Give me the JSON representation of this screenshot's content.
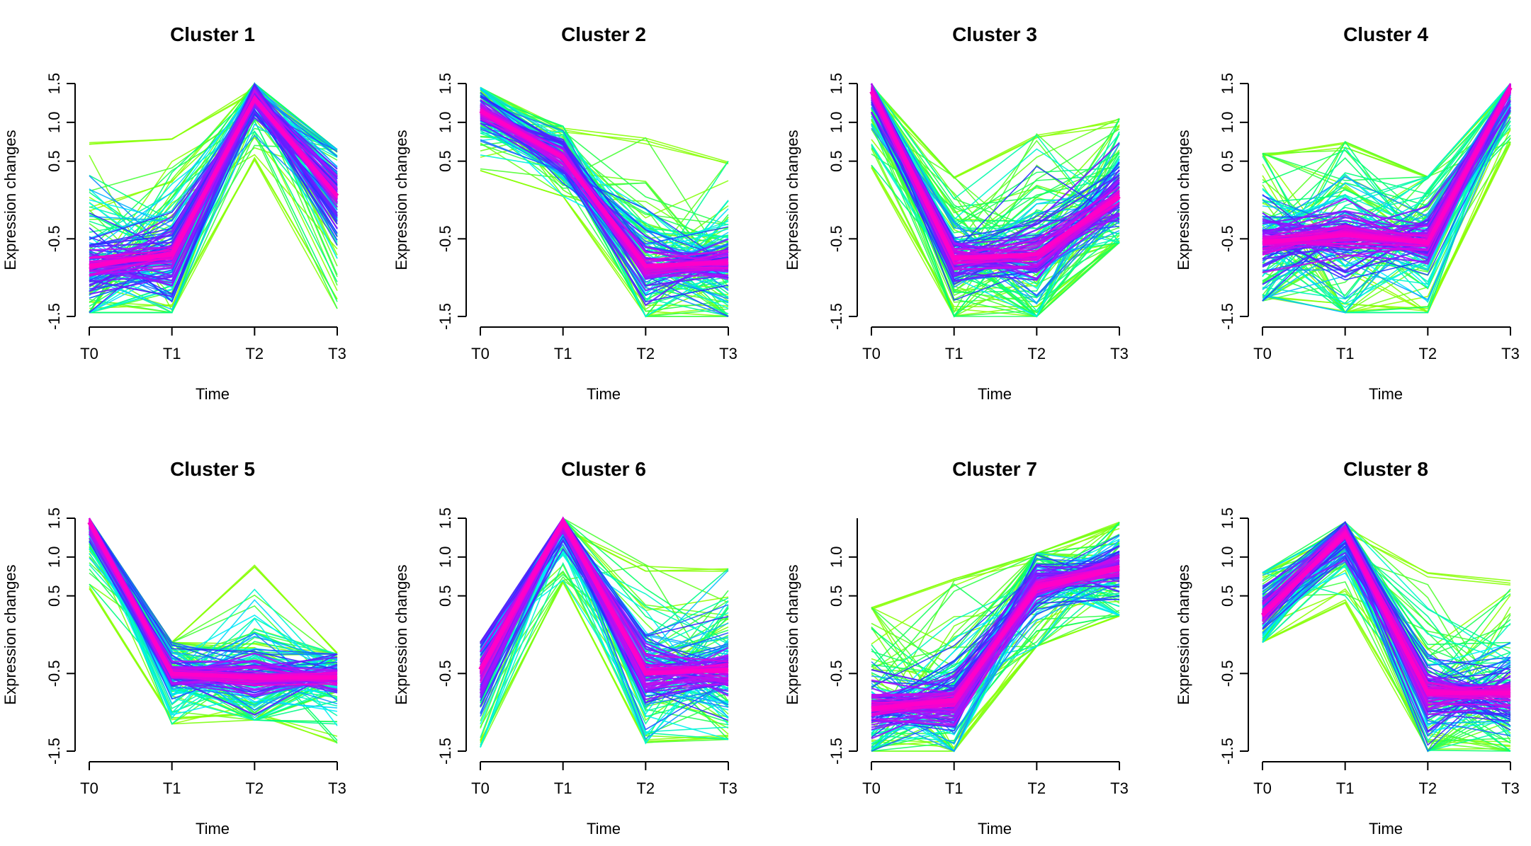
{
  "figure": {
    "xlabel": "Time",
    "ylabel": "Expression changes",
    "x_categories": [
      "T0",
      "T1",
      "T2",
      "T3"
    ]
  },
  "chart_data": [
    {
      "type": "line",
      "title": "Cluster 1",
      "xlabel": "Time",
      "ylabel": "Expression changes",
      "categories": [
        "T0",
        "T1",
        "T2",
        "T3"
      ],
      "yticks": [
        "-1.5",
        "-0.5",
        "0.5",
        "1.0",
        "1.5"
      ],
      "ylim": [
        -1.5,
        1.5
      ],
      "centroid": [
        -0.85,
        -0.7,
        1.3,
        0.05
      ],
      "spread": [
        0.6,
        0.6,
        0.25,
        0.55
      ],
      "y_min": [
        -1.45,
        -1.45,
        0.55,
        -1.4
      ],
      "y_max": [
        0.75,
        0.8,
        1.5,
        0.65
      ],
      "grid": false,
      "legend": "none"
    },
    {
      "type": "line",
      "title": "Cluster 2",
      "xlabel": "Time",
      "ylabel": "Expression changes",
      "categories": [
        "T0",
        "T1",
        "T2",
        "T3"
      ],
      "yticks": [
        "-1.5",
        "-0.5",
        "0.5",
        "1.0",
        "1.5"
      ],
      "ylim": [
        -1.5,
        1.5
      ],
      "centroid": [
        1.15,
        0.55,
        -0.85,
        -0.8
      ],
      "spread": [
        0.25,
        0.25,
        0.45,
        0.45
      ],
      "y_min": [
        0.4,
        0.05,
        -1.5,
        -1.5
      ],
      "y_max": [
        1.45,
        0.95,
        0.8,
        0.5
      ],
      "grid": false,
      "legend": "none"
    },
    {
      "type": "line",
      "title": "Cluster 3",
      "xlabel": "Time",
      "ylabel": "Expression changes",
      "categories": [
        "T0",
        "T1",
        "T2",
        "T3"
      ],
      "yticks": [
        "-1.5",
        "-0.5",
        "0.5",
        "1.0",
        "1.5"
      ],
      "ylim": [
        -1.5,
        1.5
      ],
      "centroid": [
        1.4,
        -0.75,
        -0.7,
        0.05
      ],
      "spread": [
        0.35,
        0.5,
        0.7,
        0.55
      ],
      "y_min": [
        0.45,
        -1.5,
        -1.5,
        -0.55
      ],
      "y_max": [
        1.5,
        0.3,
        0.85,
        1.05
      ],
      "grid": false,
      "legend": "none"
    },
    {
      "type": "line",
      "title": "Cluster 4",
      "xlabel": "Time",
      "ylabel": "Expression changes",
      "categories": [
        "T0",
        "T1",
        "T2",
        "T3"
      ],
      "yticks": [
        "-1.5",
        "-0.5",
        "0.5",
        "1.0",
        "1.5"
      ],
      "ylim": [
        -1.5,
        1.5
      ],
      "centroid": [
        -0.55,
        -0.45,
        -0.55,
        1.45
      ],
      "spread": [
        0.55,
        0.6,
        0.55,
        0.3
      ],
      "y_min": [
        -1.3,
        -1.45,
        -1.45,
        0.75
      ],
      "y_max": [
        0.6,
        0.75,
        0.3,
        1.5
      ],
      "grid": false,
      "legend": "none"
    },
    {
      "type": "line",
      "title": "Cluster 5",
      "xlabel": "Time",
      "ylabel": "Expression changes",
      "categories": [
        "T0",
        "T1",
        "T2",
        "T3"
      ],
      "yticks": [
        "-1.5",
        "-0.5",
        "0.5",
        "1.0",
        "1.5"
      ],
      "ylim": [
        -1.5,
        1.5
      ],
      "centroid": [
        1.45,
        -0.5,
        -0.55,
        -0.55
      ],
      "spread": [
        0.3,
        0.35,
        0.5,
        0.4
      ],
      "y_min": [
        0.65,
        -1.15,
        -1.1,
        -1.4
      ],
      "y_max": [
        1.5,
        -0.1,
        0.95,
        -0.25
      ],
      "grid": false,
      "legend": "none"
    },
    {
      "type": "line",
      "title": "Cluster 6",
      "xlabel": "Time",
      "ylabel": "Expression changes",
      "categories": [
        "T0",
        "T1",
        "T2",
        "T3"
      ],
      "yticks": [
        "-1.5",
        "-0.5",
        "0.5",
        "1.0",
        "1.5"
      ],
      "ylim": [
        -1.5,
        1.5
      ],
      "centroid": [
        -0.45,
        1.45,
        -0.5,
        -0.45
      ],
      "spread": [
        0.6,
        0.35,
        0.55,
        0.55
      ],
      "y_min": [
        -1.45,
        0.7,
        -1.4,
        -1.35
      ],
      "y_max": [
        -0.1,
        1.5,
        0.9,
        0.85
      ],
      "grid": false,
      "legend": "none"
    },
    {
      "type": "line",
      "title": "Cluster 7",
      "xlabel": "Time",
      "ylabel": "Expression changes",
      "categories": [
        "T0",
        "T1",
        "T2",
        "T3"
      ],
      "yticks": [
        "-1.5",
        "-0.5",
        "0.5",
        "1.0"
      ],
      "ylim": [
        -1.5,
        1.5
      ],
      "centroid": [
        -0.95,
        -0.85,
        0.6,
        0.85
      ],
      "spread": [
        0.5,
        0.65,
        0.4,
        0.4
      ],
      "y_min": [
        -1.5,
        -1.5,
        -0.15,
        0.25
      ],
      "y_max": [
        0.35,
        0.75,
        1.05,
        1.45
      ],
      "grid": false,
      "legend": "none"
    },
    {
      "type": "line",
      "title": "Cluster 8",
      "xlabel": "Time",
      "ylabel": "Expression changes",
      "categories": [
        "T0",
        "T1",
        "T2",
        "T3"
      ],
      "yticks": [
        "-1.5",
        "-0.5",
        "0.5",
        "1.0",
        "1.5"
      ],
      "ylim": [
        -1.5,
        1.5
      ],
      "centroid": [
        0.25,
        1.3,
        -0.75,
        -0.75
      ],
      "spread": [
        0.35,
        0.3,
        0.5,
        0.5
      ],
      "y_min": [
        -0.1,
        0.45,
        -1.5,
        -1.5
      ],
      "y_max": [
        0.8,
        1.45,
        0.8,
        0.7
      ],
      "grid": false,
      "legend": "none"
    }
  ]
}
